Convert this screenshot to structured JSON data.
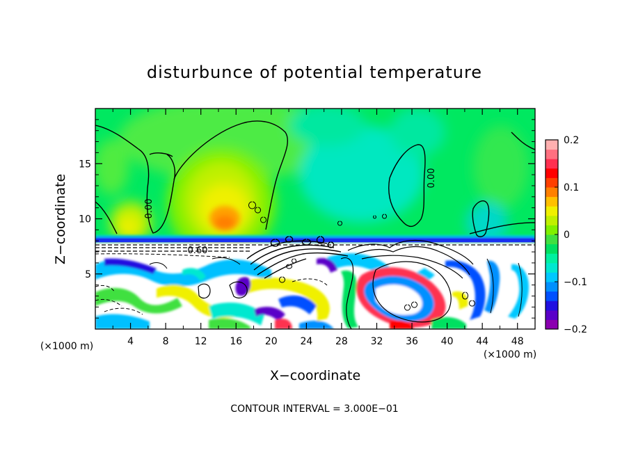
{
  "chart_data": {
    "type": "heatmap",
    "title": "disturbunce of potential temperature",
    "xlabel": "X−coordinate",
    "ylabel": "Z−coordinate",
    "x_unit": "(×1000 m)",
    "x_unit_right": "(×1000 m)",
    "xlim": [
      0,
      50
    ],
    "ylim": [
      0,
      20
    ],
    "x_ticks": [
      4,
      8,
      12,
      16,
      20,
      24,
      28,
      32,
      36,
      40,
      44,
      48
    ],
    "y_ticks": [
      5,
      10,
      15
    ],
    "colorbar": {
      "min": -0.2,
      "max": 0.2,
      "ticks": [
        {
          "value": 0.2,
          "label": "0.2"
        },
        {
          "value": 0.1,
          "label": "0.1"
        },
        {
          "value": 0,
          "label": "0"
        },
        {
          "value": -0.1,
          "label": "−0.1"
        },
        {
          "value": -0.2,
          "label": "−0.2"
        }
      ],
      "colors": [
        "#8b00b0",
        "#5a00c8",
        "#2010e0",
        "#0050ff",
        "#0090ff",
        "#00c8ff",
        "#00e8d0",
        "#00f0a0",
        "#00e060",
        "#40e040",
        "#80f000",
        "#c0f000",
        "#f0f000",
        "#ffc000",
        "#ff8000",
        "#ff4000",
        "#ff0000",
        "#ff3050",
        "#ff7080",
        "#ffb0b0"
      ]
    },
    "contour_interval": "CONTOUR INTERVAL = 3.000E−01",
    "contour_labels": [
      "0.00",
      "0.00",
      "0.00",
      "0.60"
    ]
  }
}
